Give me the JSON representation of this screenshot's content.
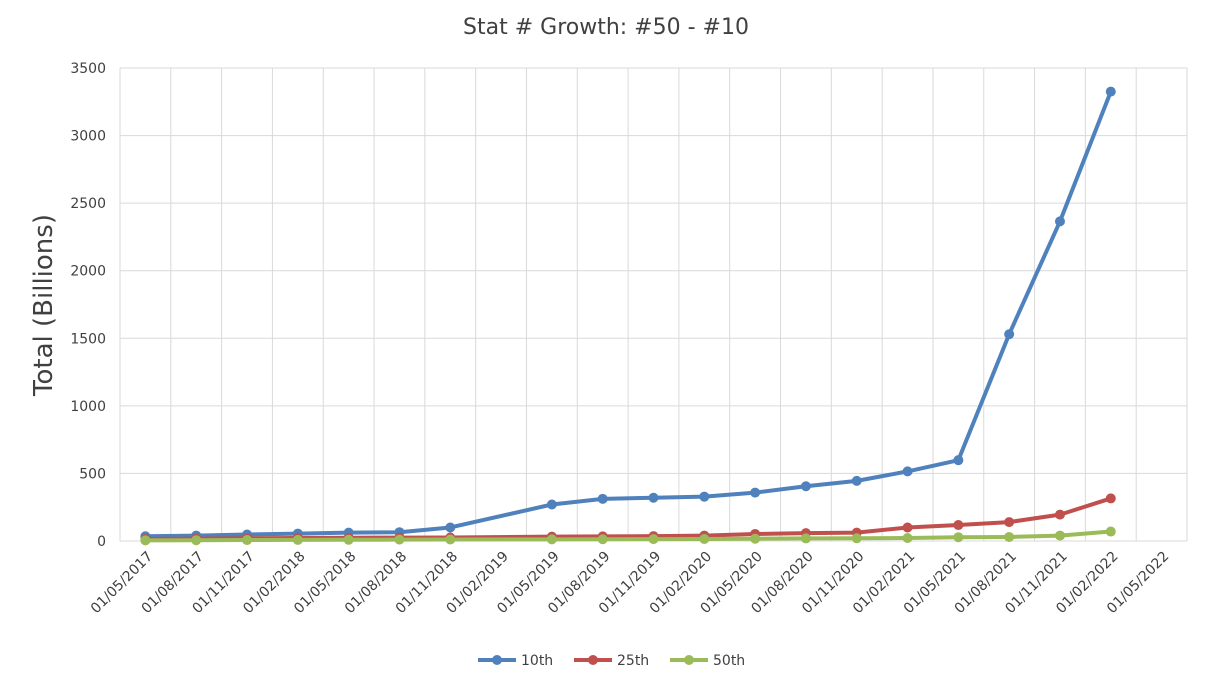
{
  "chart_data": {
    "type": "line",
    "title": "Stat # Growth: #50 - #10",
    "xlabel": "",
    "ylabel": "Total (Billions)",
    "ylim": [
      0,
      3500
    ],
    "yticks": [
      0,
      500,
      1000,
      1500,
      2000,
      2500,
      3000,
      3500
    ],
    "grid": true,
    "legend_position": "bottom",
    "x": [
      "01/05/2017",
      "01/08/2017",
      "01/11/2017",
      "01/02/2018",
      "01/05/2018",
      "01/08/2018",
      "01/11/2018",
      "01/02/2019",
      "01/05/2019",
      "01/08/2019",
      "01/11/2019",
      "01/02/2020",
      "01/05/2020",
      "01/08/2020",
      "01/11/2020",
      "01/02/2021",
      "01/05/2021",
      "01/08/2021",
      "01/11/2021",
      "01/02/2022",
      "01/05/2022"
    ],
    "series": [
      {
        "name": "10th",
        "color": "#4f81bd",
        "points": [
          [
            "01/05/2017",
            35
          ],
          [
            "01/08/2017",
            40
          ],
          [
            "01/11/2017",
            48
          ],
          [
            "01/02/2018",
            55
          ],
          [
            "01/05/2018",
            62
          ],
          [
            "01/08/2018",
            65
          ],
          [
            "01/11/2018",
            100
          ],
          [
            "01/05/2019",
            270
          ],
          [
            "01/08/2019",
            312
          ],
          [
            "01/11/2019",
            320
          ],
          [
            "01/02/2020",
            328
          ],
          [
            "01/05/2020",
            358
          ],
          [
            "01/08/2020",
            405
          ],
          [
            "01/11/2020",
            445
          ],
          [
            "01/02/2021",
            515
          ],
          [
            "01/05/2021",
            598
          ],
          [
            "01/08/2021",
            1530
          ],
          [
            "01/11/2021",
            2365
          ],
          [
            "01/02/2022",
            3325
          ]
        ]
      },
      {
        "name": "25th",
        "color": "#c0504d",
        "points": [
          [
            "01/05/2017",
            15
          ],
          [
            "01/08/2017",
            18
          ],
          [
            "01/11/2017",
            20
          ],
          [
            "01/02/2018",
            22
          ],
          [
            "01/05/2018",
            24
          ],
          [
            "01/08/2018",
            25
          ],
          [
            "01/11/2018",
            26
          ],
          [
            "01/05/2019",
            32
          ],
          [
            "01/08/2019",
            34
          ],
          [
            "01/11/2019",
            36
          ],
          [
            "01/02/2020",
            40
          ],
          [
            "01/05/2020",
            52
          ],
          [
            "01/08/2020",
            58
          ],
          [
            "01/11/2020",
            62
          ],
          [
            "01/02/2021",
            100
          ],
          [
            "01/05/2021",
            118
          ],
          [
            "01/08/2021",
            140
          ],
          [
            "01/11/2021",
            195
          ],
          [
            "01/02/2022",
            315
          ]
        ]
      },
      {
        "name": "50th",
        "color": "#9bbb59",
        "points": [
          [
            "01/05/2017",
            5
          ],
          [
            "01/08/2017",
            6
          ],
          [
            "01/11/2017",
            7
          ],
          [
            "01/02/2018",
            8
          ],
          [
            "01/05/2018",
            9
          ],
          [
            "01/08/2018",
            10
          ],
          [
            "01/11/2018",
            11
          ],
          [
            "01/05/2019",
            12
          ],
          [
            "01/08/2019",
            13
          ],
          [
            "01/11/2019",
            14
          ],
          [
            "01/02/2020",
            15
          ],
          [
            "01/05/2020",
            17
          ],
          [
            "01/08/2020",
            19
          ],
          [
            "01/11/2020",
            20
          ],
          [
            "01/02/2021",
            22
          ],
          [
            "01/05/2021",
            28
          ],
          [
            "01/08/2021",
            30
          ],
          [
            "01/11/2021",
            40
          ],
          [
            "01/02/2022",
            70
          ]
        ]
      }
    ]
  }
}
